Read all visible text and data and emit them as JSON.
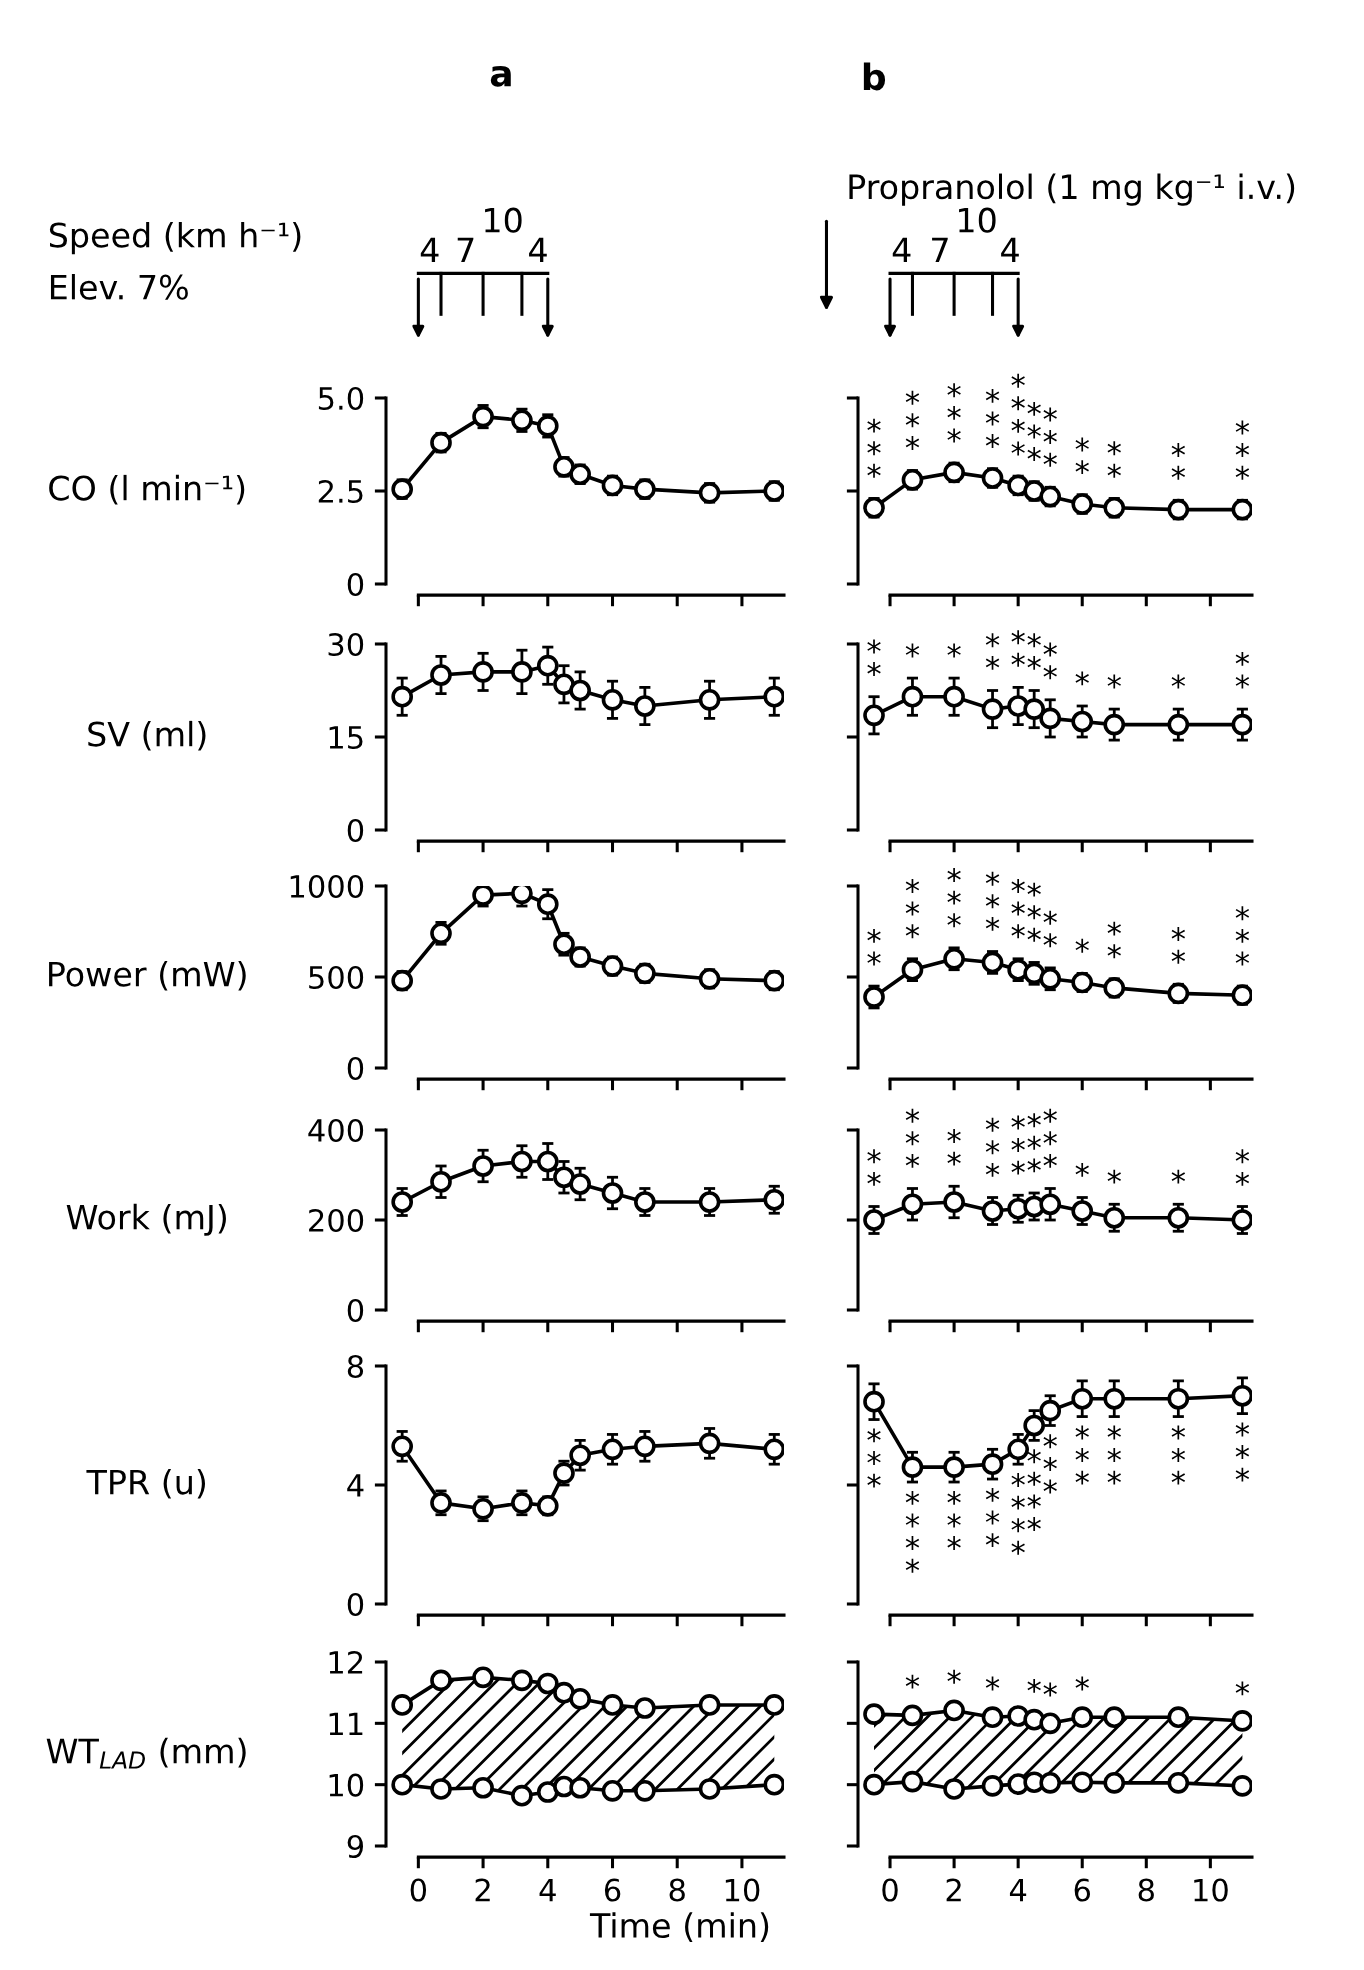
{
  "chart_data": [
    {
      "type": "line",
      "title": "a",
      "ylabel": "CO (l min⁻¹)",
      "x": [
        -0.5,
        0.7,
        2,
        3.2,
        4,
        4.5,
        5,
        6,
        7,
        9,
        11
      ],
      "xlim": [
        -1,
        11.3
      ],
      "xticks": [
        0,
        2,
        4,
        6,
        8,
        10
      ],
      "ylim": [
        0,
        5
      ],
      "yticks": [
        0,
        2.5,
        {
          "value": 5,
          "label": "5.0"
        }
      ],
      "tick_labels": "y",
      "marker": "circle",
      "line_style": "solid",
      "series": [
        {
          "color": "#000000",
          "values": [
            2.55,
            3.8,
            4.5,
            4.4,
            4.25,
            3.15,
            2.95,
            2.65,
            2.55,
            2.45,
            2.5
          ],
          "errors": [
            0.25,
            0.25,
            0.3,
            0.3,
            0.3,
            0.25,
            0.25,
            0.25,
            0.25,
            0.25,
            0.25
          ]
        }
      ],
      "annotations": [
        "Speed (km h⁻¹)",
        "Elev. 7%",
        "4",
        "7",
        "10",
        "4"
      ]
    },
    {
      "type": "line",
      "title": "b",
      "x": [
        -0.5,
        0.7,
        2,
        3.2,
        4,
        4.5,
        5,
        6,
        7,
        9,
        11
      ],
      "xlim": [
        -1,
        11.3
      ],
      "xticks": [
        0,
        2,
        4,
        6,
        8,
        10
      ],
      "ylim": [
        0,
        5
      ],
      "yticks": [
        0,
        2.5,
        5
      ],
      "tick_labels": false,
      "marker": "circle",
      "line_style": "solid",
      "series": [
        {
          "color": "#000000",
          "values": [
            2.05,
            2.8,
            3.0,
            2.85,
            2.65,
            2.5,
            2.35,
            2.15,
            2.05,
            2.0,
            2.0
          ],
          "errors": [
            0.25,
            0.25,
            0.25,
            0.25,
            0.25,
            0.25,
            0.25,
            0.25,
            0.25,
            0.25,
            0.25
          ],
          "value_labels": [
            "*\n*\n*",
            "*\n*\n*",
            "*\n*\n*",
            "*\n*\n*",
            "*\n*\n*\n*",
            "*\n*\n*",
            "*\n*\n*",
            "*\n*",
            "*\n*",
            "*\n*",
            "*\n*\n*"
          ]
        }
      ],
      "annotations": [
        "Propranolol (1 mg kg⁻¹ i.v.)",
        "4",
        "7",
        "10",
        "4"
      ]
    },
    {
      "type": "line",
      "ylabel": "SV (ml)",
      "x": [
        -0.5,
        0.7,
        2,
        3.2,
        4,
        4.5,
        5,
        6,
        7,
        9,
        11
      ],
      "xlim": [
        -1,
        11.3
      ],
      "xticks": [
        0,
        2,
        4,
        6,
        8,
        10
      ],
      "ylim": [
        0,
        30
      ],
      "yticks": [
        0,
        15,
        30
      ],
      "tick_labels": "y",
      "marker": "circle",
      "line_style": "solid",
      "series": [
        {
          "color": "#000000",
          "values": [
            21.5,
            25,
            25.5,
            25.5,
            26.5,
            23.5,
            22.5,
            21,
            20,
            21,
            21.5
          ],
          "errors": [
            3,
            3,
            3,
            3.5,
            3,
            3,
            3,
            3,
            3,
            3,
            3
          ]
        }
      ]
    },
    {
      "type": "line",
      "x": [
        -0.5,
        0.7,
        2,
        3.2,
        4,
        4.5,
        5,
        6,
        7,
        9,
        11
      ],
      "xlim": [
        -1,
        11.3
      ],
      "xticks": [
        0,
        2,
        4,
        6,
        8,
        10
      ],
      "ylim": [
        0,
        30
      ],
      "yticks": [
        0,
        15,
        30
      ],
      "tick_labels": false,
      "marker": "circle",
      "line_style": "solid",
      "series": [
        {
          "color": "#000000",
          "values": [
            18.5,
            21.5,
            21.5,
            19.5,
            20,
            19.5,
            18,
            17.5,
            17,
            17,
            17
          ],
          "errors": [
            3,
            3,
            3,
            3,
            3,
            3,
            3,
            2.5,
            2.5,
            2.5,
            2.5
          ],
          "value_labels": [
            "*\n*",
            "*",
            "*",
            "*\n*",
            "*\n*",
            "*\n*",
            "*\n*",
            "*",
            "*",
            "*",
            "*\n*"
          ]
        }
      ]
    },
    {
      "type": "line",
      "ylabel": "Power (mW)",
      "x": [
        -0.5,
        0.7,
        2,
        3.2,
        4,
        4.5,
        5,
        6,
        7,
        9,
        11
      ],
      "xlim": [
        -1,
        11.3
      ],
      "xticks": [
        0,
        2,
        4,
        6,
        8,
        10
      ],
      "ylim": [
        0,
        1000
      ],
      "yticks": [
        0,
        500,
        1000
      ],
      "tick_labels": "y",
      "marker": "circle",
      "line_style": "solid",
      "series": [
        {
          "color": "#000000",
          "values": [
            480,
            740,
            950,
            960,
            900,
            680,
            610,
            560,
            520,
            490,
            480
          ],
          "errors": [
            50,
            60,
            60,
            70,
            80,
            60,
            50,
            50,
            50,
            50,
            50
          ]
        }
      ]
    },
    {
      "type": "line",
      "x": [
        -0.5,
        0.7,
        2,
        3.2,
        4,
        4.5,
        5,
        6,
        7,
        9,
        11
      ],
      "xlim": [
        -1,
        11.3
      ],
      "xticks": [
        0,
        2,
        4,
        6,
        8,
        10
      ],
      "ylim": [
        0,
        1000
      ],
      "yticks": [
        0,
        500,
        1000
      ],
      "tick_labels": false,
      "marker": "circle",
      "line_style": "solid",
      "series": [
        {
          "color": "#000000",
          "values": [
            390,
            540,
            600,
            580,
            540,
            520,
            490,
            470,
            440,
            410,
            400
          ],
          "errors": [
            60,
            60,
            60,
            60,
            60,
            60,
            60,
            50,
            50,
            50,
            50
          ],
          "value_labels": [
            "*\n*",
            "*\n*\n*",
            "*\n*\n*",
            "*\n*\n*",
            "*\n*\n*",
            "*\n*\n*",
            "*\n*",
            "*",
            "*\n*",
            "*\n*",
            "*\n*\n*"
          ]
        }
      ]
    },
    {
      "type": "line",
      "ylabel": "Work (mJ)",
      "x": [
        -0.5,
        0.7,
        2,
        3.2,
        4,
        4.5,
        5,
        6,
        7,
        9,
        11
      ],
      "xlim": [
        -1,
        11.3
      ],
      "xticks": [
        0,
        2,
        4,
        6,
        8,
        10
      ],
      "ylim": [
        0,
        400
      ],
      "yticks": [
        0,
        200,
        400
      ],
      "tick_labels": "y",
      "marker": "circle",
      "line_style": "solid",
      "series": [
        {
          "color": "#000000",
          "values": [
            240,
            285,
            320,
            330,
            330,
            295,
            280,
            260,
            240,
            240,
            245
          ],
          "errors": [
            30,
            35,
            35,
            35,
            40,
            35,
            35,
            35,
            30,
            30,
            30
          ]
        }
      ]
    },
    {
      "type": "line",
      "x": [
        -0.5,
        0.7,
        2,
        3.2,
        4,
        4.5,
        5,
        6,
        7,
        9,
        11
      ],
      "xlim": [
        -1,
        11.3
      ],
      "xticks": [
        0,
        2,
        4,
        6,
        8,
        10
      ],
      "ylim": [
        0,
        400
      ],
      "yticks": [
        0,
        200,
        400
      ],
      "tick_labels": false,
      "marker": "circle",
      "line_style": "solid",
      "series": [
        {
          "color": "#000000",
          "values": [
            200,
            235,
            240,
            220,
            225,
            230,
            235,
            220,
            205,
            205,
            200
          ],
          "errors": [
            30,
            35,
            35,
            30,
            30,
            30,
            35,
            30,
            30,
            30,
            30
          ],
          "value_labels": [
            "*\n*",
            "*\n*\n*",
            "*\n*",
            "*\n*\n*",
            "*\n*\n*",
            "*\n*\n*",
            "*\n*\n*",
            "*",
            "*",
            "*",
            "*\n*"
          ]
        }
      ]
    },
    {
      "type": "line",
      "ylabel": "TPR (u)",
      "x": [
        -0.5,
        0.7,
        2,
        3.2,
        4,
        4.5,
        5,
        6,
        7,
        9,
        11
      ],
      "xlim": [
        -1,
        11.3
      ],
      "xticks": [
        0,
        2,
        4,
        6,
        8,
        10
      ],
      "ylim": [
        0,
        8
      ],
      "yticks": [
        0,
        4,
        8
      ],
      "tick_labels": "y",
      "marker": "circle",
      "line_style": "solid",
      "series": [
        {
          "color": "#000000",
          "values": [
            5.3,
            3.4,
            3.2,
            3.4,
            3.3,
            4.4,
            5.0,
            5.2,
            5.3,
            5.4,
            5.2
          ],
          "errors": [
            0.5,
            0.4,
            0.4,
            0.4,
            0.3,
            0.4,
            0.5,
            0.5,
            0.5,
            0.5,
            0.5
          ]
        }
      ]
    },
    {
      "type": "line",
      "x": [
        -0.5,
        0.7,
        2,
        3.2,
        4,
        4.5,
        5,
        6,
        7,
        9,
        11
      ],
      "xlim": [
        -1,
        11.3
      ],
      "xticks": [
        0,
        2,
        4,
        6,
        8,
        10
      ],
      "ylim": [
        0,
        8
      ],
      "yticks": [
        0,
        4,
        8
      ],
      "tick_labels": false,
      "marker": "circle",
      "line_style": "solid",
      "series": [
        {
          "color": "#000000",
          "values": [
            6.8,
            4.6,
            4.6,
            4.7,
            5.2,
            6.0,
            6.5,
            6.9,
            6.9,
            6.9,
            7.0
          ],
          "errors": [
            0.6,
            0.5,
            0.5,
            0.5,
            0.5,
            0.5,
            0.5,
            0.6,
            0.6,
            0.6,
            0.6
          ],
          "value_labels": [
            "*\n*\n*",
            "*\n*\n*\n*",
            "*\n*\n*",
            "*\n*\n*",
            "*\n*\n*\n*",
            "*\n*\n*\n*",
            "*\n*\n*",
            "*\n*\n*",
            "*\n*\n*",
            "*\n*\n*",
            "*\n*\n*"
          ]
        }
      ]
    },
    {
      "type": "line",
      "ylabel": "WT$_{LAD}$ (mm)",
      "xlabel": "Time (min)",
      "x": [
        -0.5,
        0.7,
        2,
        3.2,
        4,
        4.5,
        5,
        6,
        7,
        9,
        11
      ],
      "xlim": [
        -1,
        11.3
      ],
      "xticks": [
        0,
        2,
        4,
        6,
        8,
        10
      ],
      "ylim": [
        9,
        12
      ],
      "yticks": [
        9,
        10,
        11,
        12
      ],
      "marker": "circle",
      "line_style": "solid",
      "series": [
        {
          "color": "#000000",
          "values": [
            11.3,
            11.7,
            11.75,
            11.7,
            11.65,
            11.5,
            11.4,
            11.3,
            11.25,
            11.3,
            11.3
          ],
          "errors": [
            0.07,
            0.07,
            0.07,
            0.07,
            0.07,
            0.07,
            0.07,
            0.07,
            0.07,
            0.07,
            0.07
          ],
          "lower": [
            10.0,
            9.93,
            9.95,
            9.82,
            9.88,
            9.97,
            9.95,
            9.9,
            9.9,
            9.93,
            10.0
          ],
          "upper": [
            11.3,
            11.7,
            11.75,
            11.7,
            11.65,
            11.5,
            11.4,
            11.3,
            11.25,
            11.3,
            11.3
          ]
        },
        {
          "color": "#000000",
          "values": [
            10.0,
            9.93,
            9.95,
            9.82,
            9.88,
            9.97,
            9.95,
            9.9,
            9.9,
            9.93,
            10.0
          ],
          "errors": [
            0.06,
            0.06,
            0.06,
            0.06,
            0.06,
            0.06,
            0.06,
            0.06,
            0.06,
            0.06,
            0.06
          ]
        }
      ]
    },
    {
      "type": "line",
      "x": [
        -0.5,
        0.7,
        2,
        3.2,
        4,
        4.5,
        5,
        6,
        7,
        9,
        11
      ],
      "xlim": [
        -1,
        11.3
      ],
      "xticks": [
        0,
        2,
        4,
        6,
        8,
        10
      ],
      "ylim": [
        9,
        12
      ],
      "yticks": [
        9,
        10,
        11,
        12
      ],
      "tick_labels": "x",
      "marker": "circle",
      "line_style": "solid",
      "series": [
        {
          "color": "#000000",
          "values": [
            11.15,
            11.13,
            11.21,
            11.1,
            11.12,
            11.06,
            11.0,
            11.1,
            11.1,
            11.1,
            11.04
          ],
          "errors": [
            0.1,
            0.1,
            0.1,
            0.1,
            0.1,
            0.1,
            0.1,
            0.1,
            0.1,
            0.08,
            0.08
          ],
          "lower": [
            10.0,
            10.05,
            9.93,
            9.98,
            10.01,
            10.04,
            10.03,
            10.04,
            10.03,
            10.03,
            9.98
          ],
          "upper": [
            11.15,
            11.13,
            11.21,
            11.1,
            11.12,
            11.06,
            11.0,
            11.1,
            11.1,
            11.1,
            11.04
          ],
          "value_labels": [
            null,
            "*",
            "*",
            "*",
            null,
            "*",
            "*",
            "*",
            null,
            null,
            "*"
          ]
        },
        {
          "color": "#000000",
          "values": [
            10.0,
            10.05,
            9.93,
            9.98,
            10.01,
            10.04,
            10.03,
            10.04,
            10.03,
            10.03,
            9.98
          ],
          "errors": [
            0.08,
            0.08,
            0.08,
            0.08,
            0.08,
            0.08,
            0.08,
            0.08,
            0.08,
            0.08,
            0.08
          ]
        }
      ]
    }
  ]
}
